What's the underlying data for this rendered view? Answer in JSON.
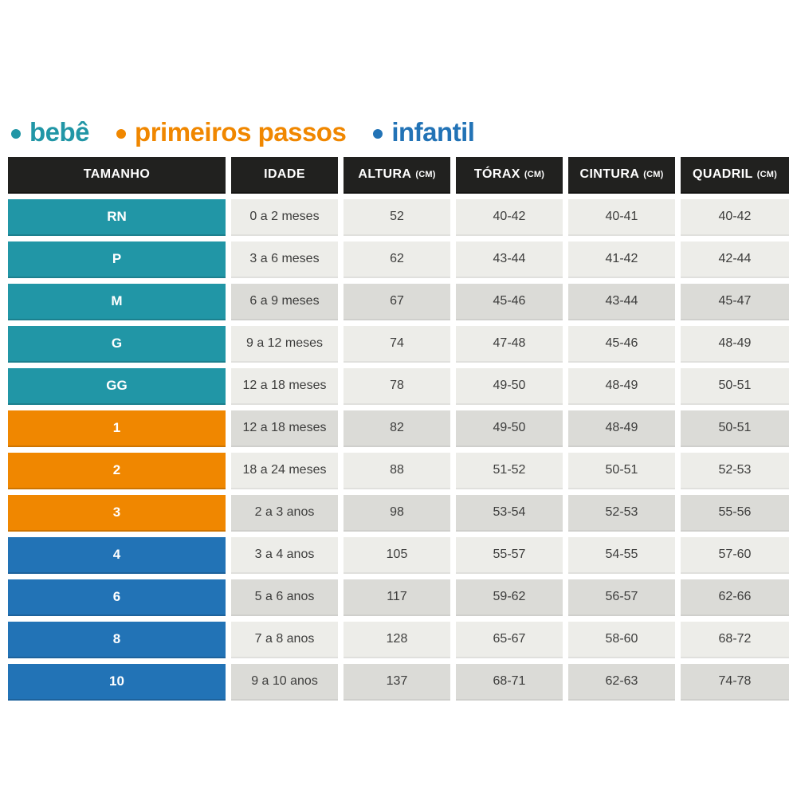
{
  "legend": {
    "items": [
      {
        "id": "bebe",
        "label": "bebê",
        "color": "#2196a6"
      },
      {
        "id": "primeiros_passos",
        "label": "primeiros passos",
        "color": "#f08700"
      },
      {
        "id": "infantil",
        "label": "infantil",
        "color": "#2273b6"
      }
    ]
  },
  "table": {
    "headers": [
      {
        "label": "TAMANHO",
        "unit": ""
      },
      {
        "label": "IDADE",
        "unit": ""
      },
      {
        "label": "ALTURA",
        "unit": "(CM)"
      },
      {
        "label": "TÓRAX",
        "unit": "(CM)"
      },
      {
        "label": "CINTURA",
        "unit": "(CM)"
      },
      {
        "label": "QUADRIL",
        "unit": "(CM)"
      }
    ],
    "rows": [
      {
        "size": "RN",
        "category": "bebe",
        "age": "0 a 2 meses",
        "altura": "52",
        "torax": "40-42",
        "cintura": "40-41",
        "quadril": "40-42",
        "shade": "light"
      },
      {
        "size": "P",
        "category": "bebe",
        "age": "3 a 6 meses",
        "altura": "62",
        "torax": "43-44",
        "cintura": "41-42",
        "quadril": "42-44",
        "shade": "light"
      },
      {
        "size": "M",
        "category": "bebe",
        "age": "6 a 9 meses",
        "altura": "67",
        "torax": "45-46",
        "cintura": "43-44",
        "quadril": "45-47",
        "shade": "dark"
      },
      {
        "size": "G",
        "category": "bebe",
        "age": "9 a 12 meses",
        "altura": "74",
        "torax": "47-48",
        "cintura": "45-46",
        "quadril": "48-49",
        "shade": "light"
      },
      {
        "size": "GG",
        "category": "bebe",
        "age": "12 a 18 meses",
        "altura": "78",
        "torax": "49-50",
        "cintura": "48-49",
        "quadril": "50-51",
        "shade": "light"
      },
      {
        "size": "1",
        "category": "primeiros_passos",
        "age": "12 a 18 meses",
        "altura": "82",
        "torax": "49-50",
        "cintura": "48-49",
        "quadril": "50-51",
        "shade": "dark"
      },
      {
        "size": "2",
        "category": "primeiros_passos",
        "age": "18 a 24 meses",
        "altura": "88",
        "torax": "51-52",
        "cintura": "50-51",
        "quadril": "52-53",
        "shade": "light"
      },
      {
        "size": "3",
        "category": "primeiros_passos",
        "age": "2 a 3 anos",
        "altura": "98",
        "torax": "53-54",
        "cintura": "52-53",
        "quadril": "55-56",
        "shade": "dark"
      },
      {
        "size": "4",
        "category": "infantil",
        "age": "3 a 4 anos",
        "altura": "105",
        "torax": "55-57",
        "cintura": "54-55",
        "quadril": "57-60",
        "shade": "light"
      },
      {
        "size": "6",
        "category": "infantil",
        "age": "5 a 6 anos",
        "altura": "117",
        "torax": "59-62",
        "cintura": "56-57",
        "quadril": "62-66",
        "shade": "dark"
      },
      {
        "size": "8",
        "category": "infantil",
        "age": "7 a 8 anos",
        "altura": "128",
        "torax": "65-67",
        "cintura": "58-60",
        "quadril": "68-72",
        "shade": "light"
      },
      {
        "size": "10",
        "category": "infantil",
        "age": "9 a 10 anos",
        "altura": "137",
        "torax": "68-71",
        "cintura": "62-63",
        "quadril": "74-78",
        "shade": "dark"
      }
    ]
  },
  "colors": {
    "header_bg": "#21211f",
    "bebe": "#2196a6",
    "primeiros_passos": "#f08700",
    "infantil": "#2273b6",
    "cell_light": "#edede9",
    "cell_dark": "#dbdbd7",
    "cell_text": "#3d3d3c"
  },
  "chart_data": {
    "type": "table",
    "title": "",
    "columns": [
      "TAMANHO",
      "IDADE",
      "ALTURA (CM)",
      "TÓRAX (CM)",
      "CINTURA (CM)",
      "QUADRIL (CM)"
    ],
    "groups": [
      {
        "name": "bebê",
        "color": "#2196a6",
        "sizes": [
          "RN",
          "P",
          "M",
          "G",
          "GG"
        ]
      },
      {
        "name": "primeiros passos",
        "color": "#f08700",
        "sizes": [
          "1",
          "2",
          "3"
        ]
      },
      {
        "name": "infantil",
        "color": "#2273b6",
        "sizes": [
          "4",
          "6",
          "8",
          "10"
        ]
      }
    ],
    "rows": [
      [
        "RN",
        "0 a 2 meses",
        "52",
        "40-42",
        "40-41",
        "40-42"
      ],
      [
        "P",
        "3 a 6 meses",
        "62",
        "43-44",
        "41-42",
        "42-44"
      ],
      [
        "M",
        "6 a 9 meses",
        "67",
        "45-46",
        "43-44",
        "45-47"
      ],
      [
        "G",
        "9 a 12 meses",
        "74",
        "47-48",
        "45-46",
        "48-49"
      ],
      [
        "GG",
        "12 a 18 meses",
        "78",
        "49-50",
        "48-49",
        "50-51"
      ],
      [
        "1",
        "12 a 18 meses",
        "82",
        "49-50",
        "48-49",
        "50-51"
      ],
      [
        "2",
        "18 a 24 meses",
        "88",
        "51-52",
        "50-51",
        "52-53"
      ],
      [
        "3",
        "2 a 3 anos",
        "98",
        "53-54",
        "52-53",
        "55-56"
      ],
      [
        "4",
        "3 a 4 anos",
        "105",
        "55-57",
        "54-55",
        "57-60"
      ],
      [
        "6",
        "5 a 6 anos",
        "117",
        "59-62",
        "56-57",
        "62-66"
      ],
      [
        "8",
        "7 a 8 anos",
        "128",
        "65-67",
        "58-60",
        "68-72"
      ],
      [
        "10",
        "9 a 10 anos",
        "137",
        "68-71",
        "62-63",
        "74-78"
      ]
    ]
  }
}
